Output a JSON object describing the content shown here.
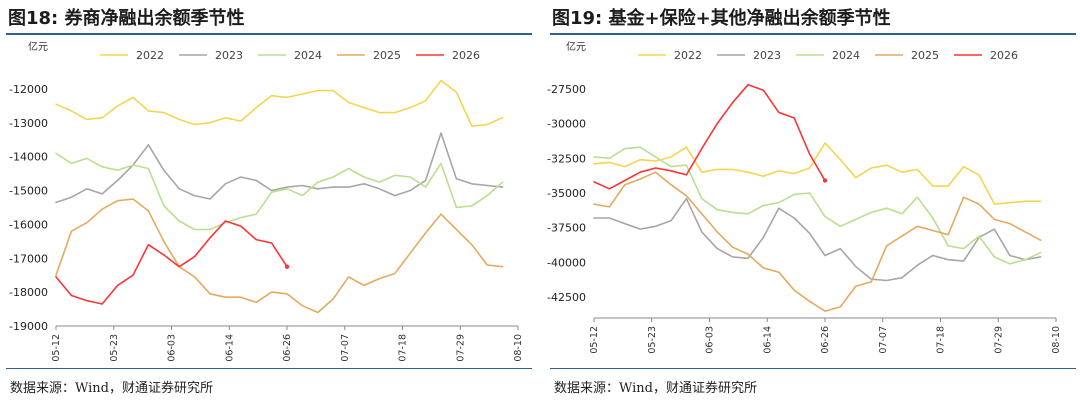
{
  "colors": {
    "rule": "#2c6191",
    "2022": "#f5d54f",
    "2023": "#a6a6a6",
    "2024": "#b8e08d",
    "2025": "#e6a95f",
    "2026": "#ff3333"
  },
  "panels": [
    {
      "title": "图18: 券商净融出余额季节性",
      "source": "数据来源：Wind，财通证券研究所"
    },
    {
      "title": "图19: 基金+保险+其他净融出余额季节性",
      "source": "数据来源：Wind，财通证券研究所"
    }
  ],
  "chart_data": [
    {
      "type": "line",
      "unit_label": "亿元",
      "ylim": [
        -19000,
        -11500
      ],
      "yticks": [
        -12000,
        -13000,
        -14000,
        -15000,
        -16000,
        -17000,
        -18000,
        -19000
      ],
      "x_dates": [
        "05-12",
        "05-15",
        "05-18",
        "05-21",
        "05-24",
        "05-27",
        "05-30",
        "06-02",
        "06-05",
        "06-08",
        "06-11",
        "06-14",
        "06-17",
        "06-20",
        "06-23",
        "06-26",
        "06-29",
        "07-02",
        "07-05",
        "07-08",
        "07-11",
        "07-14",
        "07-17",
        "07-20",
        "07-23",
        "07-26",
        "07-29",
        "08-01",
        "08-04",
        "08-07",
        "08-10"
      ],
      "x_tick_labels": [
        "05-12",
        "05-23",
        "06-03",
        "06-14",
        "06-26",
        "07-07",
        "07-18",
        "07-29",
        "08-10"
      ],
      "legend": [
        "2022",
        "2023",
        "2024",
        "2025",
        "2026"
      ],
      "legend_position": "top",
      "grid": false,
      "series": [
        {
          "name": "2022",
          "values": [
            -12450,
            -12650,
            -12900,
            -12850,
            -12500,
            -12250,
            -12650,
            -12700,
            -12900,
            -13050,
            -13000,
            -12850,
            -12950,
            -12550,
            -12200,
            -12250,
            -12150,
            -12050,
            -12050,
            -12400,
            -12550,
            -12700,
            -12700,
            -12550,
            -12350,
            -11750,
            -12100,
            -13100,
            -13050,
            -12850,
            null
          ]
        },
        {
          "name": "2023",
          "values": [
            -15350,
            -15200,
            -14950,
            -15100,
            -14700,
            -14250,
            -13650,
            -14400,
            -14950,
            -15150,
            -15250,
            -14800,
            -14600,
            -14700,
            -15000,
            -14900,
            -14850,
            -14950,
            -14900,
            -14900,
            -14800,
            -14950,
            -15150,
            -15000,
            -14700,
            -13300,
            -14650,
            -14800,
            -14850,
            -14900,
            null
          ]
        },
        {
          "name": "2024",
          "values": [
            -13900,
            -14200,
            -14050,
            -14300,
            -14400,
            -14250,
            -14350,
            -15450,
            -15900,
            -16150,
            -16150,
            -15950,
            -15800,
            -15700,
            -15050,
            -14950,
            -15150,
            -14750,
            -14600,
            -14350,
            -14600,
            -14750,
            -14550,
            -14600,
            -14900,
            -14200,
            -15500,
            -15450,
            -15150,
            -14750,
            null
          ]
        },
        {
          "name": "2025",
          "values": [
            -17500,
            -16200,
            -15950,
            -15550,
            -15300,
            -15250,
            -15600,
            -16500,
            -17250,
            -17550,
            -18050,
            -18150,
            -18150,
            -18300,
            -18000,
            -18050,
            -18400,
            -18600,
            -18200,
            -17550,
            -17800,
            -17600,
            -17450,
            -16850,
            -16250,
            -15700,
            -16150,
            -16600,
            -17200,
            -17250,
            null
          ]
        },
        {
          "name": "2026",
          "values": [
            -17550,
            -18100,
            -18250,
            -18350,
            -17800,
            -17500,
            -16600,
            -16900,
            -17250,
            -16950,
            -16400,
            -15900,
            -16050,
            -16450,
            -16550,
            -17250,
            null,
            null,
            null,
            null,
            null,
            null,
            null,
            null,
            null,
            null,
            null,
            null,
            null,
            null,
            null
          ]
        }
      ]
    },
    {
      "type": "line",
      "unit_label": "亿元",
      "ylim": [
        -44000,
        -26000
      ],
      "yticks": [
        -27500,
        -30000,
        -32500,
        -35000,
        -37500,
        -40000,
        -42500
      ],
      "x_dates": [
        "05-12",
        "05-15",
        "05-18",
        "05-21",
        "05-24",
        "05-27",
        "05-30",
        "06-02",
        "06-05",
        "06-08",
        "06-11",
        "06-14",
        "06-17",
        "06-20",
        "06-23",
        "06-26",
        "06-29",
        "07-02",
        "07-05",
        "07-08",
        "07-11",
        "07-14",
        "07-17",
        "07-20",
        "07-23",
        "07-26",
        "07-29",
        "08-01",
        "08-04",
        "08-07",
        "08-10"
      ],
      "x_tick_labels": [
        "05-12",
        "05-23",
        "06-03",
        "06-14",
        "06-26",
        "07-07",
        "07-18",
        "07-29",
        "08-10"
      ],
      "legend": [
        "2022",
        "2023",
        "2024",
        "2025",
        "2026"
      ],
      "legend_position": "top",
      "grid": false,
      "series": [
        {
          "name": "2022",
          "values": [
            -32900,
            -32800,
            -33100,
            -32600,
            -32700,
            -32400,
            -31700,
            -33500,
            -33300,
            -33300,
            -33500,
            -33800,
            -33400,
            -33600,
            -33200,
            -31400,
            -32600,
            -33900,
            -33200,
            -33000,
            -33500,
            -33300,
            -34500,
            -34500,
            -33100,
            -33700,
            -35800,
            -35700,
            -35600,
            -35600,
            null
          ]
        },
        {
          "name": "2023",
          "values": [
            -36800,
            -36800,
            -37200,
            -37600,
            -37400,
            -37000,
            -35400,
            -37800,
            -39000,
            -39600,
            -39700,
            -38200,
            -36100,
            -36800,
            -37900,
            -39500,
            -39000,
            -40300,
            -41200,
            -41300,
            -41100,
            -40200,
            -39500,
            -39800,
            -39900,
            -38200,
            -37600,
            -39500,
            -39800,
            -39600,
            null
          ]
        },
        {
          "name": "2024",
          "values": [
            -32400,
            -32500,
            -31800,
            -31700,
            -32400,
            -33100,
            -33000,
            -35400,
            -36200,
            -36400,
            -36500,
            -35900,
            -35700,
            -35100,
            -35000,
            -36700,
            -37400,
            -36900,
            -36400,
            -36100,
            -36500,
            -35300,
            -36800,
            -38800,
            -39000,
            -38100,
            -39600,
            -40100,
            -39800,
            -39300,
            null
          ]
        },
        {
          "name": "2025",
          "values": [
            -35800,
            -36000,
            -34400,
            -34000,
            -33500,
            -34400,
            -35200,
            -36500,
            -37800,
            -38900,
            -39400,
            -40400,
            -40700,
            -42000,
            -42800,
            -43500,
            -43200,
            -41700,
            -41400,
            -38800,
            -38100,
            -37400,
            -37700,
            -38000,
            -35300,
            -35800,
            -36900,
            -37200,
            -37800,
            -38400,
            null
          ]
        },
        {
          "name": "2026",
          "values": [
            -34200,
            -34700,
            -34100,
            -33500,
            -33200,
            -33400,
            -33700,
            -31800,
            -30000,
            -28500,
            -27200,
            -27600,
            -29200,
            -29600,
            -32200,
            -34100,
            null,
            null,
            null,
            null,
            null,
            null,
            null,
            null,
            null,
            null,
            null,
            null,
            null,
            null,
            null
          ]
        }
      ]
    }
  ]
}
